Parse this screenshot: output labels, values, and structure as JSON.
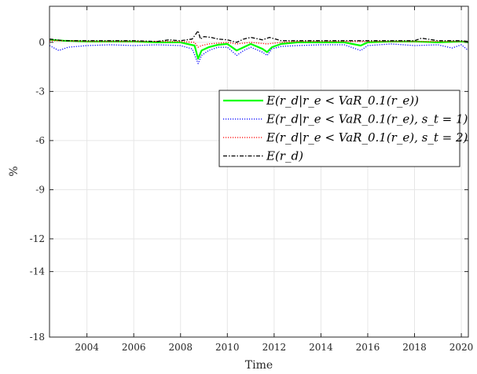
{
  "chart_data": {
    "type": "line",
    "title": "",
    "xlabel": "Time",
    "ylabel": "%",
    "xlim": [
      2002.4,
      2020.3
    ],
    "ylim": [
      -18,
      2.2
    ],
    "x_ticks": [
      2004,
      2006,
      2008,
      2010,
      2012,
      2014,
      2016,
      2018,
      2020
    ],
    "x_tick_labels": [
      "2004",
      "2006",
      "2008",
      "2010",
      "2012",
      "2014",
      "2016",
      "2018",
      "2020"
    ],
    "y_ticks": [
      0,
      -3,
      -6,
      -9,
      -12,
      -14,
      -18
    ],
    "y_tick_labels": [
      "0",
      "-3",
      "-6",
      "-9",
      "-12",
      "-14",
      "-18"
    ],
    "grid": true,
    "legend_position": "center-right",
    "series": [
      {
        "name": "E(r_d|r_e < VaR_0.1(r_e))",
        "color": "#00ff00",
        "style": "solid",
        "x": [
          2002.4,
          2003.0,
          2004.0,
          2005.0,
          2006.0,
          2007.0,
          2008.0,
          2008.6,
          2008.75,
          2008.9,
          2009.2,
          2009.6,
          2010.0,
          2010.4,
          2010.7,
          2011.0,
          2011.5,
          2011.7,
          2011.9,
          2012.3,
          2013.0,
          2014.0,
          2015.0,
          2015.7,
          2016.0,
          2017.0,
          2018.0,
          2019.0,
          2020.0,
          2020.3
        ],
        "values": [
          0.15,
          0.1,
          0.05,
          0.05,
          0.05,
          0.0,
          0.0,
          -0.2,
          -1.0,
          -0.5,
          -0.3,
          -0.15,
          -0.1,
          -0.5,
          -0.3,
          -0.1,
          -0.4,
          -0.6,
          -0.3,
          -0.1,
          0.0,
          0.0,
          0.0,
          -0.2,
          0.0,
          0.05,
          0.05,
          0.0,
          0.05,
          0.0
        ]
      },
      {
        "name": "E(r_d|r_e < VaR_0.1(r_e), s_t = 1)",
        "color": "#0000ff",
        "style": "dotted",
        "x": [
          2002.4,
          2002.8,
          2003.2,
          2004.0,
          2005.0,
          2006.0,
          2007.0,
          2008.0,
          2008.5,
          2008.75,
          2008.9,
          2009.2,
          2009.6,
          2010.0,
          2010.4,
          2010.7,
          2011.0,
          2011.5,
          2011.7,
          2011.9,
          2012.3,
          2013.0,
          2014.0,
          2015.0,
          2015.7,
          2016.0,
          2017.0,
          2018.0,
          2019.0,
          2019.6,
          2020.0,
          2020.3
        ],
        "values": [
          -0.2,
          -0.5,
          -0.3,
          -0.2,
          -0.15,
          -0.2,
          -0.15,
          -0.2,
          -0.4,
          -1.3,
          -0.8,
          -0.5,
          -0.3,
          -0.3,
          -0.8,
          -0.5,
          -0.3,
          -0.6,
          -0.8,
          -0.4,
          -0.25,
          -0.2,
          -0.15,
          -0.15,
          -0.5,
          -0.2,
          -0.1,
          -0.2,
          -0.15,
          -0.35,
          -0.15,
          -0.5
        ]
      },
      {
        "name": "E(r_d|r_e < VaR_0.1(r_e), s_t = 2)",
        "color": "#ff0000",
        "style": "dotted",
        "x": [
          2002.4,
          2003.0,
          2004.0,
          2005.0,
          2006.0,
          2007.0,
          2008.0,
          2008.6,
          2008.75,
          2008.9,
          2009.2,
          2009.6,
          2010.0,
          2010.4,
          2011.0,
          2011.7,
          2012.3,
          2013.0,
          2014.0,
          2015.0,
          2016.0,
          2017.0,
          2018.0,
          2019.0,
          2020.0,
          2020.3
        ],
        "values": [
          0.1,
          0.1,
          0.05,
          0.05,
          0.05,
          0.05,
          0.05,
          0.0,
          -0.3,
          -0.2,
          -0.1,
          -0.05,
          0.0,
          -0.1,
          0.0,
          -0.1,
          0.0,
          0.05,
          0.05,
          0.05,
          0.05,
          0.05,
          0.05,
          0.05,
          0.05,
          0.05
        ]
      },
      {
        "name": "E(r_d)",
        "color": "#000000",
        "style": "dashdot",
        "x": [
          2002.4,
          2003.0,
          2004.0,
          2005.0,
          2006.0,
          2007.0,
          2007.5,
          2008.0,
          2008.5,
          2008.75,
          2008.85,
          2009.0,
          2009.3,
          2009.6,
          2010.0,
          2010.4,
          2010.7,
          2011.0,
          2011.5,
          2011.8,
          2012.3,
          2013.0,
          2014.0,
          2015.0,
          2016.0,
          2017.0,
          2018.0,
          2018.3,
          2019.0,
          2020.0,
          2020.3
        ],
        "values": [
          0.2,
          0.1,
          0.1,
          0.1,
          0.1,
          0.05,
          0.15,
          0.1,
          0.2,
          0.7,
          0.2,
          0.35,
          0.3,
          0.2,
          0.15,
          0.0,
          0.2,
          0.3,
          0.15,
          0.3,
          0.1,
          0.1,
          0.1,
          0.1,
          0.1,
          0.1,
          0.1,
          0.25,
          0.1,
          0.1,
          0.05
        ]
      }
    ]
  }
}
